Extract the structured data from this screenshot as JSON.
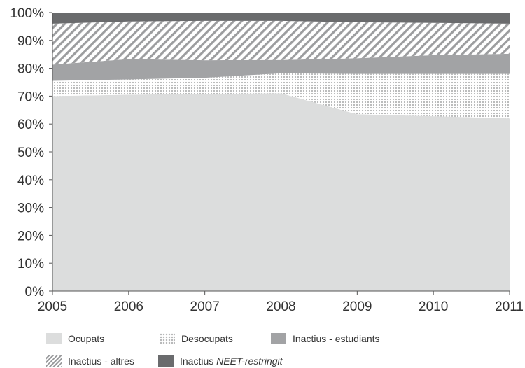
{
  "chart_data": {
    "type": "area",
    "stacked": true,
    "x": [
      "2005",
      "2006",
      "2007",
      "2008",
      "2009",
      "2010",
      "2011"
    ],
    "ylim": [
      0,
      100
    ],
    "yticks": [
      "0%",
      "10%",
      "20%",
      "30%",
      "40%",
      "50%",
      "60%",
      "70%",
      "80%",
      "90%",
      "100%"
    ],
    "series": [
      {
        "name": "Ocupats",
        "color": "#dcdddd",
        "pattern": "solid",
        "values": [
          70.0,
          70.5,
          70.8,
          71.0,
          63.5,
          62.8,
          62.0
        ]
      },
      {
        "name": "Desocupats",
        "color": "#b8b9ba",
        "pattern": "dots",
        "values": [
          5.5,
          5.5,
          5.8,
          7.2,
          14.5,
          15.2,
          16.0
        ]
      },
      {
        "name": "Inactius - estudiants",
        "color": "#a2a3a5",
        "pattern": "solid",
        "values": [
          5.8,
          7.3,
          6.3,
          4.8,
          5.6,
          6.7,
          7.2
        ]
      },
      {
        "name": "Inactius - altres",
        "color": "#9c9d9f",
        "pattern": "hatch",
        "values": [
          14.7,
          13.5,
          14.1,
          14.0,
          12.9,
          11.6,
          10.8
        ]
      },
      {
        "name": "Inactius NEET-restringit",
        "color": "#6a6b6d",
        "pattern": "solid",
        "values": [
          4.0,
          3.2,
          3.0,
          3.0,
          3.5,
          3.7,
          4.0
        ]
      }
    ],
    "grid": false,
    "legend_position": "bottom"
  },
  "legend": {
    "item1": "Ocupats",
    "item2": "Desocupats",
    "item3": "Inactius - estudiants",
    "item4": "Inactius - altres",
    "item5_prefix": "Inactius ",
    "item5_italic": "NEET-restringit"
  }
}
